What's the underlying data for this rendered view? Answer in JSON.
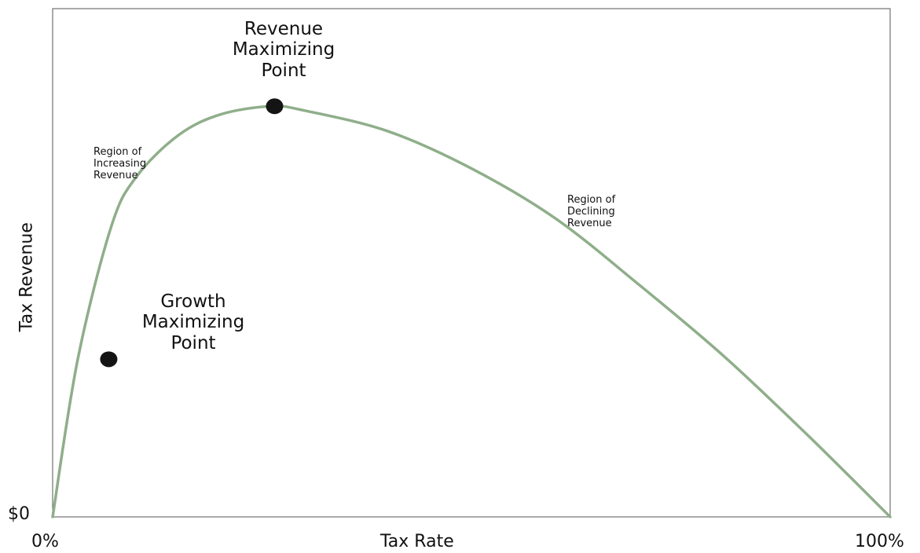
{
  "chart_data": {
    "type": "line",
    "title": "",
    "xlabel": "Tax Rate",
    "ylabel": "Tax Revenue",
    "x_tick_labels": [
      "0%",
      "100%"
    ],
    "y_tick_labels": [
      "$0"
    ],
    "xlim": [
      0,
      100
    ],
    "ylim": [
      0,
      100
    ],
    "grid": false,
    "series": [
      {
        "color": "#8fae8a",
        "x": [
          0,
          3,
          7,
          10,
          15,
          20,
          26,
          30,
          40,
          50,
          60,
          70,
          80,
          90,
          100
        ],
        "y": [
          0,
          38,
          70,
          82,
          92,
          97,
          99,
          98,
          93,
          84,
          72,
          56,
          39,
          20,
          0
        ]
      }
    ],
    "points": [
      {
        "label": "Growth Maximizing\nPoint",
        "x": 6.7,
        "y": 38
      },
      {
        "label": "Revenue\nMaximizing\nPoint",
        "x": 26.5,
        "y": 99
      }
    ],
    "annotations": [
      {
        "text": "Region of\nIncreasing\nRevenue"
      },
      {
        "text": "Region of\nDeclining\nRevenue"
      }
    ]
  }
}
